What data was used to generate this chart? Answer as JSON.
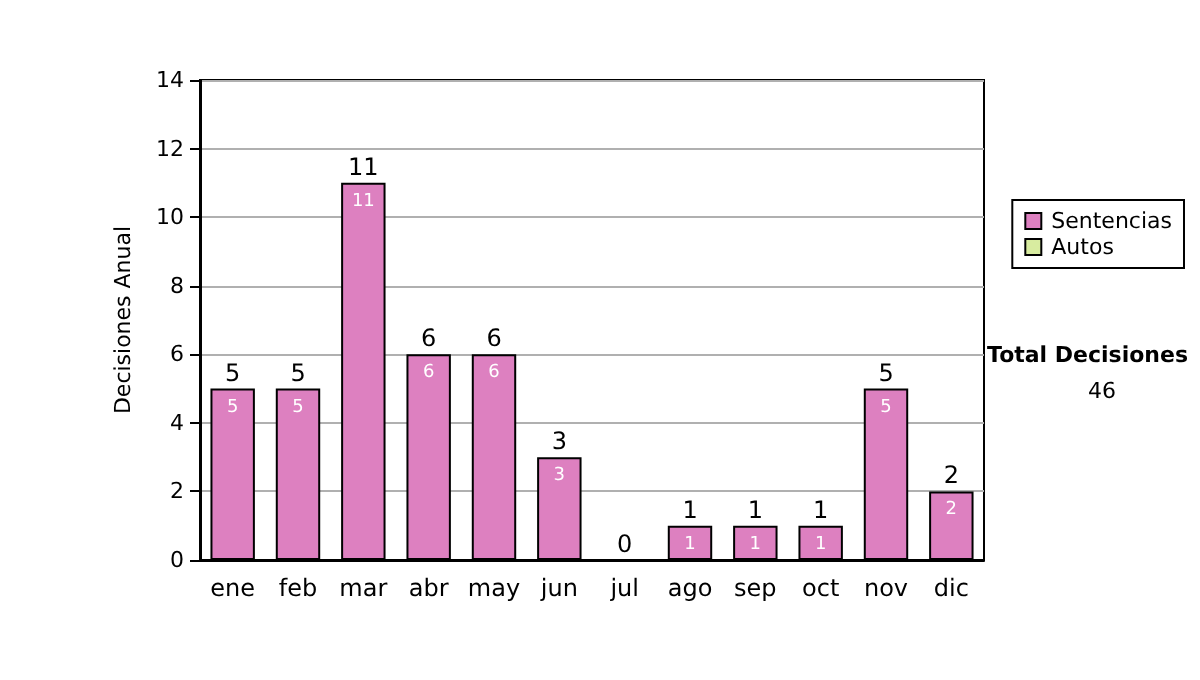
{
  "chart_data": {
    "type": "bar",
    "ylabel": "Decisiones Anual",
    "categories": [
      "ene",
      "feb",
      "mar",
      "abr",
      "may",
      "jun",
      "jul",
      "ago",
      "sep",
      "oct",
      "nov",
      "dic"
    ],
    "series": [
      {
        "name": "Sentencias",
        "color": "#dd80c0",
        "values": [
          5,
          5,
          11,
          6,
          6,
          3,
          0,
          1,
          1,
          1,
          5,
          2
        ],
        "value_labels": [
          "5",
          "5",
          "11",
          "6",
          "6",
          "3",
          null,
          "1",
          "1",
          "1",
          "5",
          "2"
        ]
      },
      {
        "name": "Autos",
        "color": "#d8eca0",
        "values": [
          0,
          0,
          0,
          0,
          0,
          0,
          0,
          0,
          0,
          0,
          0,
          0
        ]
      }
    ],
    "stacked": true,
    "totals": [
      "5",
      "5",
      "11",
      "6",
      "6",
      "3",
      "0",
      "1",
      "1",
      "1",
      "5",
      "2"
    ],
    "ylim": [
      0,
      14
    ],
    "yticks": [
      0,
      2,
      4,
      6,
      8,
      10,
      12,
      14
    ],
    "grid": "y",
    "legend": "right",
    "annotations": [
      "Total Decisiones",
      "46"
    ]
  }
}
